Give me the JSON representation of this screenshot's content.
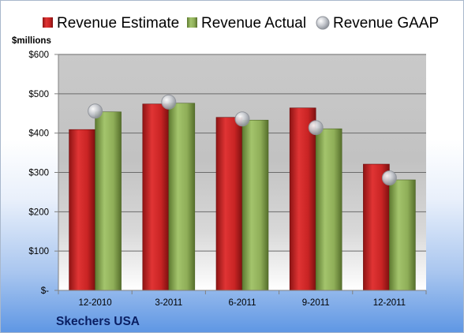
{
  "chart_data": {
    "type": "bar",
    "title": "",
    "xlabel": "",
    "ylabel": "$millions",
    "company": "Skechers USA",
    "categories": [
      "12-2010",
      "3-2011",
      "6-2011",
      "9-2011",
      "12-2011"
    ],
    "series": [
      {
        "name": "Revenue Estimate",
        "kind": "bar",
        "color": "#d42a2a",
        "values": [
          409,
          474,
          440,
          464,
          321
        ]
      },
      {
        "name": "Revenue Actual",
        "kind": "bar",
        "color": "#93b35c",
        "values": [
          454,
          476,
          433,
          411,
          281
        ]
      },
      {
        "name": "Revenue GAAP",
        "kind": "marker",
        "color": "#b8bcc4",
        "values": [
          456,
          479,
          436,
          414,
          286
        ]
      }
    ],
    "ylim": [
      0,
      600
    ],
    "yticks": [
      0,
      100,
      200,
      300,
      400,
      500,
      600
    ],
    "ytick_labels": [
      "$-",
      "$100",
      "$200",
      "$300",
      "$400",
      "$500",
      "$600"
    ],
    "grid": true,
    "legend_position": "top"
  }
}
